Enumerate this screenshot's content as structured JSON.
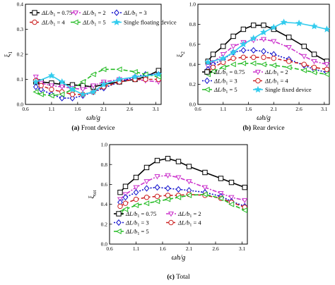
{
  "chart_data": [
    {
      "type": "line",
      "caption_letter": "(a)",
      "caption_text": "Front device",
      "xlabel": "ωh/g",
      "ylabel": "ξ1",
      "xlim": [
        0.6,
        3.2
      ],
      "ylim": [
        0,
        0.4
      ],
      "xticks": [
        "0.6",
        "1.1",
        "1.6",
        "2.1",
        "2.6",
        "3.1"
      ],
      "yticks": [
        "0.0",
        "0.1",
        "0.2",
        "0.3",
        "0.4"
      ],
      "legend": "top, 3 columns",
      "series": [
        {
          "name": "ΔL/b1 = 0.75",
          "color": "#000000",
          "dash": "",
          "marker": "square",
          "x": [
            0.8,
            0.9,
            1.1,
            1.3,
            1.5,
            1.7,
            1.9,
            2.1,
            2.4,
            2.7,
            2.9,
            3.15
          ],
          "y": [
            0.09,
            0.09,
            0.085,
            0.08,
            0.078,
            0.075,
            0.07,
            0.08,
            0.09,
            0.1,
            0.11,
            0.135
          ]
        },
        {
          "name": "ΔL/b1 = 2",
          "color": "#cc33cc",
          "dash": "6,2,2,2",
          "marker": "triangle-down",
          "x": [
            0.8,
            0.9,
            1.1,
            1.3,
            1.5,
            1.7,
            1.9,
            2.1,
            2.4,
            2.7,
            2.9,
            3.15
          ],
          "y": [
            0.11,
            0.085,
            0.075,
            0.07,
            0.065,
            0.06,
            0.075,
            0.09,
            0.1,
            0.1,
            0.095,
            0.09
          ]
        },
        {
          "name": "ΔL/b1 = 3",
          "color": "#1010cc",
          "dash": "2,2",
          "marker": "diamond",
          "x": [
            0.8,
            0.9,
            1.1,
            1.3,
            1.5,
            1.7,
            1.9,
            2.1,
            2.4,
            2.7,
            2.9,
            3.15
          ],
          "y": [
            0.07,
            0.06,
            0.04,
            0.025,
            0.025,
            0.035,
            0.05,
            0.065,
            0.09,
            0.11,
            0.12,
            0.12
          ]
        },
        {
          "name": "ΔL/b1 = 4",
          "color": "#cc2222",
          "dash": "5,3",
          "marker": "circle",
          "x": [
            0.8,
            0.9,
            1.1,
            1.3,
            1.5,
            1.7,
            1.9,
            2.1,
            2.4,
            2.7,
            2.9,
            3.15
          ],
          "y": [
            0.095,
            0.075,
            0.06,
            0.05,
            0.04,
            0.04,
            0.05,
            0.07,
            0.09,
            0.1,
            0.1,
            0.1
          ]
        },
        {
          "name": "ΔL/b1 = 5",
          "color": "#22bb22",
          "dash": "6,3",
          "marker": "triangle-left",
          "x": [
            0.8,
            0.9,
            1.1,
            1.3,
            1.5,
            1.7,
            1.9,
            2.1,
            2.4,
            2.7,
            2.9,
            3.15
          ],
          "y": [
            0.05,
            0.04,
            0.035,
            0.04,
            0.06,
            0.09,
            0.12,
            0.14,
            0.14,
            0.13,
            0.12,
            0.11
          ]
        },
        {
          "name": "Single floating device",
          "color": "#33ccee",
          "dash": "",
          "marker": "star",
          "x": [
            0.8,
            1.1,
            1.3,
            1.5,
            1.7,
            1.9,
            2.1,
            2.4,
            2.7,
            3.15
          ],
          "y": [
            0.09,
            0.115,
            0.09,
            0.06,
            0.04,
            0.05,
            0.08,
            0.1,
            0.11,
            0.12
          ]
        }
      ]
    },
    {
      "type": "line",
      "caption_letter": "(b)",
      "caption_text": "Rear device",
      "xlabel": "ωh/g",
      "ylabel": "ξ2",
      "xlim": [
        0.6,
        3.2
      ],
      "ylim": [
        0,
        1.0
      ],
      "xticks": [
        "0.6",
        "1.1",
        "1.6",
        "2.1",
        "2.6",
        "3.1"
      ],
      "yticks": [
        "0.0",
        "0.2",
        "0.4",
        "0.6",
        "0.8",
        "1.0"
      ],
      "legend": "bottom, 2 columns",
      "series": [
        {
          "name": "ΔL/b1 = 0.75",
          "color": "#000000",
          "dash": "",
          "marker": "square",
          "x": [
            0.8,
            0.9,
            1.1,
            1.3,
            1.5,
            1.7,
            1.9,
            2.1,
            2.4,
            2.7,
            2.9,
            3.15
          ],
          "y": [
            0.43,
            0.5,
            0.58,
            0.68,
            0.75,
            0.79,
            0.79,
            0.75,
            0.67,
            0.58,
            0.5,
            0.43
          ]
        },
        {
          "name": "ΔL/b1 = 2",
          "color": "#cc33cc",
          "dash": "6,2,2,2",
          "marker": "triangle-down",
          "x": [
            0.8,
            0.9,
            1.1,
            1.3,
            1.5,
            1.7,
            1.9,
            2.1,
            2.4,
            2.7,
            2.9,
            3.15
          ],
          "y": [
            0.38,
            0.42,
            0.5,
            0.58,
            0.62,
            0.64,
            0.65,
            0.63,
            0.57,
            0.48,
            0.43,
            0.4
          ]
        },
        {
          "name": "ΔL/b1 = 3",
          "color": "#1010cc",
          "dash": "2,2",
          "marker": "diamond",
          "x": [
            0.8,
            0.9,
            1.1,
            1.3,
            1.5,
            1.7,
            1.9,
            2.1,
            2.4,
            2.7,
            2.9,
            3.15
          ],
          "y": [
            0.35,
            0.4,
            0.45,
            0.52,
            0.54,
            0.54,
            0.53,
            0.5,
            0.45,
            0.39,
            0.35,
            0.32
          ]
        },
        {
          "name": "ΔL/b1 = 4",
          "color": "#cc2222",
          "dash": "5,3",
          "marker": "circle",
          "x": [
            0.8,
            0.9,
            1.1,
            1.3,
            1.5,
            1.7,
            1.9,
            2.1,
            2.4,
            2.7,
            2.9,
            3.15
          ],
          "y": [
            0.33,
            0.37,
            0.42,
            0.46,
            0.47,
            0.47,
            0.47,
            0.46,
            0.43,
            0.4,
            0.37,
            0.35
          ]
        },
        {
          "name": "ΔL/b1 = 5",
          "color": "#22bb22",
          "dash": "6,3",
          "marker": "triangle-left",
          "x": [
            0.8,
            0.9,
            1.1,
            1.3,
            1.5,
            1.7,
            1.9,
            2.1,
            2.4,
            2.7,
            2.9,
            3.15
          ],
          "y": [
            0.3,
            0.33,
            0.37,
            0.4,
            0.41,
            0.41,
            0.4,
            0.39,
            0.37,
            0.34,
            0.32,
            0.3
          ]
        },
        {
          "name": "Single fixed device",
          "color": "#33ccee",
          "dash": "",
          "marker": "star",
          "x": [
            0.8,
            1.1,
            1.3,
            1.5,
            1.7,
            1.9,
            2.1,
            2.3,
            2.6,
            2.9,
            3.15
          ],
          "y": [
            0.42,
            0.46,
            0.52,
            0.6,
            0.66,
            0.72,
            0.77,
            0.82,
            0.81,
            0.78,
            0.75
          ]
        }
      ]
    },
    {
      "type": "line",
      "caption_letter": "(c)",
      "caption_text": "Total",
      "xlabel": "ωh/g",
      "ylabel": "ξtot",
      "xlim": [
        0.6,
        3.2
      ],
      "ylim": [
        0,
        1.0
      ],
      "xticks": [
        "0.6",
        "1.1",
        "1.6",
        "2.1",
        "2.6",
        "3.1"
      ],
      "yticks": [
        "0.0",
        "0.2",
        "0.4",
        "0.6",
        "0.8",
        "1.0"
      ],
      "legend": "bottom, 2 columns",
      "series": [
        {
          "name": "ΔL/b1 = 0.75",
          "color": "#000000",
          "dash": "",
          "marker": "square",
          "x": [
            0.8,
            0.9,
            1.1,
            1.3,
            1.5,
            1.7,
            1.9,
            2.1,
            2.4,
            2.7,
            2.9,
            3.15
          ],
          "y": [
            0.52,
            0.58,
            0.67,
            0.77,
            0.84,
            0.86,
            0.83,
            0.78,
            0.72,
            0.66,
            0.62,
            0.57
          ]
        },
        {
          "name": "ΔL/b1 = 2",
          "color": "#cc33cc",
          "dash": "6,2,2,2",
          "marker": "triangle-down",
          "x": [
            0.8,
            0.9,
            1.1,
            1.3,
            1.5,
            1.7,
            1.9,
            2.1,
            2.4,
            2.7,
            2.9,
            3.15
          ],
          "y": [
            0.45,
            0.5,
            0.57,
            0.63,
            0.68,
            0.69,
            0.67,
            0.63,
            0.57,
            0.51,
            0.47,
            0.44
          ]
        },
        {
          "name": "ΔL/b1 = 3",
          "color": "#1010cc",
          "dash": "2,2",
          "marker": "diamond",
          "x": [
            0.8,
            0.9,
            1.1,
            1.3,
            1.5,
            1.7,
            1.9,
            2.1,
            2.4,
            2.7,
            2.9,
            3.15
          ],
          "y": [
            0.42,
            0.47,
            0.52,
            0.56,
            0.57,
            0.56,
            0.55,
            0.54,
            0.52,
            0.48,
            0.43,
            0.38
          ]
        },
        {
          "name": "ΔL/b1 = 4",
          "color": "#cc2222",
          "dash": "5,3",
          "marker": "circle",
          "x": [
            0.8,
            0.9,
            1.1,
            1.3,
            1.5,
            1.7,
            1.9,
            2.1,
            2.4,
            2.7,
            2.9,
            3.15
          ],
          "y": [
            0.38,
            0.41,
            0.45,
            0.47,
            0.48,
            0.49,
            0.49,
            0.5,
            0.49,
            0.46,
            0.42,
            0.37
          ]
        },
        {
          "name": "ΔL/b1 = 5",
          "color": "#22bb22",
          "dash": "6,3",
          "marker": "triangle-left",
          "x": [
            0.8,
            0.9,
            1.1,
            1.3,
            1.5,
            1.7,
            1.9,
            2.1,
            2.4,
            2.7,
            2.9,
            3.15
          ],
          "y": [
            0.32,
            0.35,
            0.39,
            0.41,
            0.43,
            0.45,
            0.47,
            0.49,
            0.5,
            0.46,
            0.4,
            0.34
          ]
        }
      ]
    }
  ]
}
